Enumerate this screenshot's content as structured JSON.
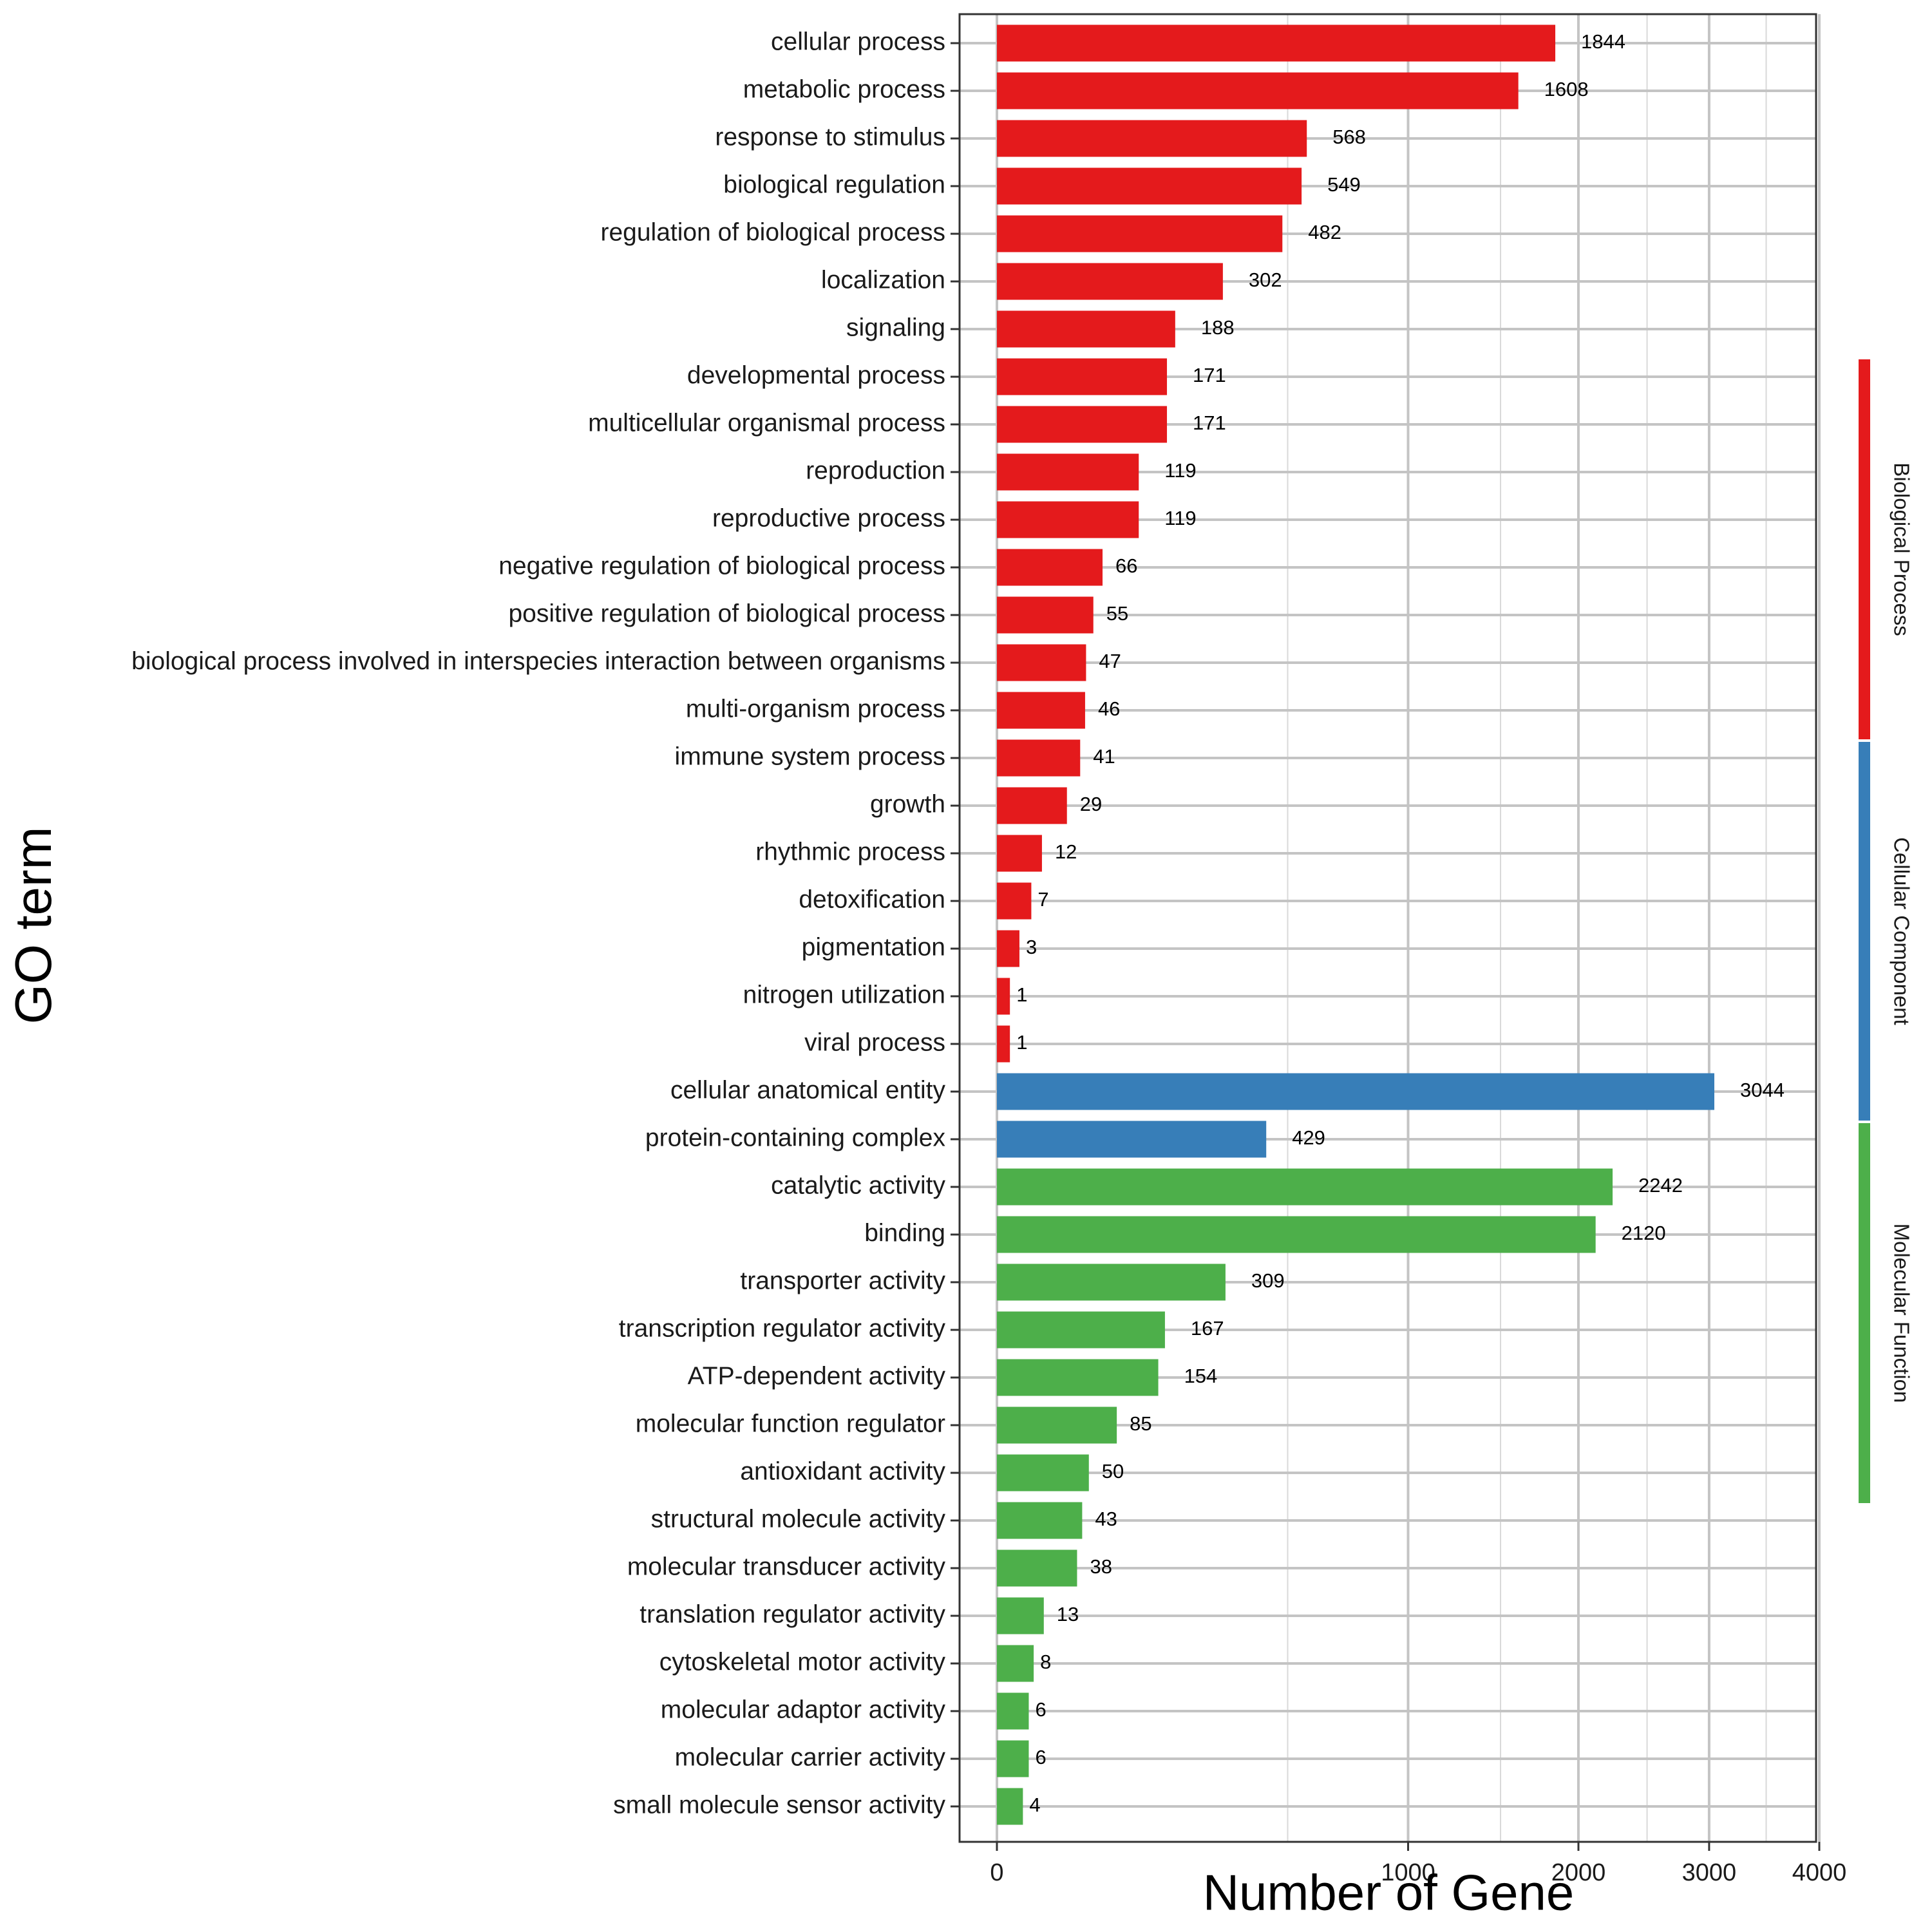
{
  "chart_data": {
    "type": "bar",
    "orientation": "horizontal",
    "xlabel": "Number of Gene",
    "ylabel": "GO term",
    "x_scale": "sqrt",
    "xlim": [
      0,
      4000
    ],
    "x_ticks": [
      0,
      1000,
      2000,
      3000,
      4000
    ],
    "grid": true,
    "colors": {
      "Biological Process": "#E41A1C",
      "Cellular Component": "#377EB8",
      "Molecular Function": "#4DAF4A"
    },
    "groups": [
      "Biological Process",
      "Cellular Component",
      "Molecular Function"
    ],
    "categories": [
      "cellular process",
      "metabolic process",
      "response to stimulus",
      "biological regulation",
      "regulation of biological process",
      "localization",
      "signaling",
      "developmental process",
      "multicellular organismal process",
      "reproduction",
      "reproductive process",
      "negative regulation of biological process",
      "positive regulation of biological process",
      "biological process involved in interspecies interaction between organisms",
      "multi-organism process",
      "immune system process",
      "growth",
      "rhythmic process",
      "detoxification",
      "pigmentation",
      "nitrogen utilization",
      "viral process",
      "cellular anatomical entity",
      "protein-containing complex",
      "catalytic activity",
      "binding",
      "transporter activity",
      "transcription regulator activity",
      "ATP-dependent activity",
      "molecular function regulator",
      "antioxidant activity",
      "structural molecule activity",
      "molecular transducer activity",
      "translation regulator activity",
      "cytoskeletal motor activity",
      "molecular adaptor activity",
      "molecular carrier activity",
      "small molecule sensor activity"
    ],
    "values": [
      1844,
      1608,
      568,
      549,
      482,
      302,
      188,
      171,
      171,
      119,
      119,
      66,
      55,
      47,
      46,
      41,
      29,
      12,
      7,
      3,
      1,
      1,
      3044,
      429,
      2242,
      2120,
      309,
      167,
      154,
      85,
      50,
      43,
      38,
      13,
      8,
      6,
      6,
      4
    ],
    "category_group": [
      "Biological Process",
      "Biological Process",
      "Biological Process",
      "Biological Process",
      "Biological Process",
      "Biological Process",
      "Biological Process",
      "Biological Process",
      "Biological Process",
      "Biological Process",
      "Biological Process",
      "Biological Process",
      "Biological Process",
      "Biological Process",
      "Biological Process",
      "Biological Process",
      "Biological Process",
      "Biological Process",
      "Biological Process",
      "Biological Process",
      "Biological Process",
      "Biological Process",
      "Cellular Component",
      "Cellular Component",
      "Molecular Function",
      "Molecular Function",
      "Molecular Function",
      "Molecular Function",
      "Molecular Function",
      "Molecular Function",
      "Molecular Function",
      "Molecular Function",
      "Molecular Function",
      "Molecular Function",
      "Molecular Function",
      "Molecular Function",
      "Molecular Function",
      "Molecular Function"
    ]
  }
}
